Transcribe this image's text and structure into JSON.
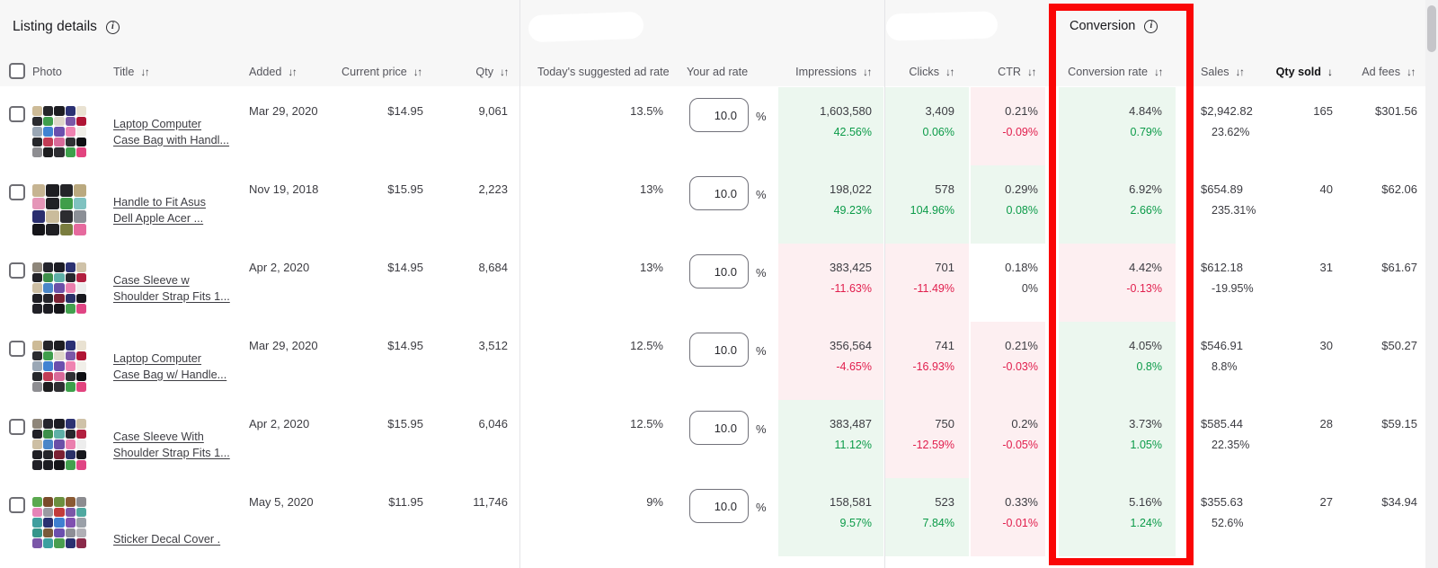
{
  "header": {
    "listing_details_label": "Listing details",
    "conversion_label": "Conversion"
  },
  "columns": {
    "photo": "Photo",
    "title": "Title",
    "added": "Added",
    "current_price": "Current price",
    "qty": "Qty",
    "suggested_rate": "Today's suggested ad rate",
    "your_ad_rate": "Your ad rate",
    "impressions": "Impressions",
    "clicks": "Clicks",
    "ctr": "CTR",
    "conversion_rate": "Conversion rate",
    "sales": "Sales",
    "qty_sold": "Qty sold",
    "ad_fees": "Ad fees",
    "sort_both": "↓↑",
    "sort_down": "↓"
  },
  "misc": {
    "percent": "%",
    "info": "i"
  },
  "colors": {
    "accent-red": "#fa0606",
    "green-text": "#0c9b49",
    "red-text": "#e11e4d",
    "cell-green": "#ecf7ef",
    "cell-pink": "#fdeff1"
  },
  "rows": [
    {
      "title": [
        "Laptop Computer",
        "Case Bag with Handl..."
      ],
      "added": "Mar 29, 2020",
      "price": "$14.95",
      "qty": "9,061",
      "suggested_rate": "13.5%",
      "ad_rate": "10.0",
      "impressions": {
        "value": "1,603,580",
        "delta": "42.56%",
        "trend": "up",
        "bg": "green"
      },
      "clicks": {
        "value": "3,409",
        "delta": "0.06%",
        "trend": "up",
        "bg": "green"
      },
      "ctr": {
        "value": "0.21%",
        "delta": "-0.09%",
        "trend": "down",
        "bg": "pink"
      },
      "conversion": {
        "value": "4.84%",
        "delta": "0.79%",
        "trend": "up",
        "bg": "green"
      },
      "sales": {
        "value": "$2,942.82",
        "delta": "23.62%"
      },
      "qty_sold": "165",
      "ad_fees": "$301.56",
      "photo": {
        "grid": 5,
        "colors": [
          "#cdbb97",
          "#26262a",
          "#1d1d21",
          "#2b3173",
          "#e9e2d2",
          "#2a2b2f",
          "#3f9e4c",
          "#dfd8ca",
          "#7b57a8",
          "#b01535",
          "#9aa7b5",
          "#4183d2",
          "#6b4fae",
          "#ef83b1",
          "#f1efe9",
          "#26272b",
          "#c23b55",
          "#d96a9a",
          "#303034",
          "#0f0f13",
          "#8e8e92",
          "#1d1d1f",
          "#2e2e32",
          "#3da04b",
          "#e2447f"
        ]
      }
    },
    {
      "title": [
        "Handle to Fit Asus",
        "Dell Apple Acer ..."
      ],
      "added": "Nov 19, 2018",
      "price": "$15.95",
      "qty": "2,223",
      "suggested_rate": "13%",
      "ad_rate": "10.0",
      "impressions": {
        "value": "198,022",
        "delta": "49.23%",
        "trend": "up",
        "bg": "green"
      },
      "clicks": {
        "value": "578",
        "delta": "104.96%",
        "trend": "up",
        "bg": "green"
      },
      "ctr": {
        "value": "0.29%",
        "delta": "0.08%",
        "trend": "up",
        "bg": "green"
      },
      "conversion": {
        "value": "6.92%",
        "delta": "2.66%",
        "trend": "up",
        "bg": "green"
      },
      "sales": {
        "value": "$654.89",
        "delta": "235.31%"
      },
      "qty_sold": "40",
      "ad_fees": "$62.06",
      "photo": {
        "grid": 4,
        "colors": [
          "#c6b492",
          "#1e1e22",
          "#242428",
          "#baa97f",
          "#e596b8",
          "#212125",
          "#3f9e49",
          "#7fc2c0",
          "#2a2e6e",
          "#cabc9c",
          "#2c2c30",
          "#8b8f96",
          "#151519",
          "#202024",
          "#7a7d3f",
          "#e66a9e"
        ]
      }
    },
    {
      "title": [
        "Case Sleeve w",
        "Shoulder Strap Fits 1..."
      ],
      "added": "Apr 2, 2020",
      "price": "$14.95",
      "qty": "8,684",
      "suggested_rate": "13%",
      "ad_rate": "10.0",
      "impressions": {
        "value": "383,425",
        "delta": "-11.63%",
        "trend": "down",
        "bg": "pink"
      },
      "clicks": {
        "value": "701",
        "delta": "-11.49%",
        "trend": "down",
        "bg": "pink"
      },
      "ctr": {
        "value": "0.18%",
        "delta": "0%",
        "trend": "flat",
        "bg": "white"
      },
      "conversion": {
        "value": "4.42%",
        "delta": "-0.13%",
        "trend": "down",
        "bg": "pink"
      },
      "sales": {
        "value": "$612.18",
        "delta": "-19.95%"
      },
      "qty_sold": "31",
      "ad_fees": "$61.67",
      "photo": {
        "grid": 5,
        "colors": [
          "#8e867a",
          "#24242c",
          "#1c1c24",
          "#2c3272",
          "#cfc2a8",
          "#212127",
          "#3d8f4a",
          "#5fb0a8",
          "#27272d",
          "#b22040",
          "#cdbfa4",
          "#4a86c8",
          "#6b50a8",
          "#ea7fae",
          "#ededed",
          "#1f1f25",
          "#24242a",
          "#7c2033",
          "#2a3168",
          "#17171d",
          "#212127",
          "#1c1c22",
          "#151519",
          "#42a04e",
          "#e04584"
        ]
      }
    },
    {
      "title": [
        "Laptop Computer",
        "Case Bag w/ Handle..."
      ],
      "added": "Mar 29, 2020",
      "price": "$14.95",
      "qty": "3,512",
      "suggested_rate": "12.5%",
      "ad_rate": "10.0",
      "impressions": {
        "value": "356,564",
        "delta": "-4.65%",
        "trend": "down",
        "bg": "pink"
      },
      "clicks": {
        "value": "741",
        "delta": "-16.93%",
        "trend": "down",
        "bg": "pink"
      },
      "ctr": {
        "value": "0.21%",
        "delta": "-0.03%",
        "trend": "down",
        "bg": "pink"
      },
      "conversion": {
        "value": "4.05%",
        "delta": "0.8%",
        "trend": "up",
        "bg": "green"
      },
      "sales": {
        "value": "$546.91",
        "delta": "8.8%"
      },
      "qty_sold": "30",
      "ad_fees": "$50.27",
      "photo": {
        "grid": 5,
        "colors": [
          "#cdbb97",
          "#26262a",
          "#1d1d21",
          "#2b3173",
          "#e9e2d2",
          "#2a2b2f",
          "#3f9e4c",
          "#dfd8ca",
          "#7b57a8",
          "#b01535",
          "#9aa7b5",
          "#4183d2",
          "#6b4fae",
          "#ef83b1",
          "#f1efe9",
          "#26272b",
          "#c23b55",
          "#d96a9a",
          "#303034",
          "#0f0f13",
          "#8e8e92",
          "#1d1d1f",
          "#2e2e32",
          "#3da04b",
          "#e2447f"
        ]
      }
    },
    {
      "title": [
        "Case Sleeve With",
        "Shoulder Strap Fits 1..."
      ],
      "added": "Apr 2, 2020",
      "price": "$15.95",
      "qty": "6,046",
      "suggested_rate": "12.5%",
      "ad_rate": "10.0",
      "impressions": {
        "value": "383,487",
        "delta": "11.12%",
        "trend": "up",
        "bg": "green"
      },
      "clicks": {
        "value": "750",
        "delta": "-12.59%",
        "trend": "down",
        "bg": "pink"
      },
      "ctr": {
        "value": "0.2%",
        "delta": "-0.05%",
        "trend": "down",
        "bg": "pink"
      },
      "conversion": {
        "value": "3.73%",
        "delta": "1.05%",
        "trend": "up",
        "bg": "green"
      },
      "sales": {
        "value": "$585.44",
        "delta": "22.35%"
      },
      "qty_sold": "28",
      "ad_fees": "$59.15",
      "photo": {
        "grid": 5,
        "colors": [
          "#8e867a",
          "#24242c",
          "#1c1c24",
          "#2c3272",
          "#cfc2a8",
          "#212127",
          "#3d8f4a",
          "#5fb0a8",
          "#27272d",
          "#b22040",
          "#cdbfa4",
          "#4a86c8",
          "#6b50a8",
          "#ea7fae",
          "#ededed",
          "#1f1f25",
          "#24242a",
          "#7c2033",
          "#2a3168",
          "#17171d",
          "#212127",
          "#1c1c22",
          "#151519",
          "#42a04e",
          "#e04584"
        ]
      }
    },
    {
      "title": [
        "Sticker Decal Cover ."
      ],
      "added": "May 5, 2020",
      "price": "$11.95",
      "qty": "11,746",
      "suggested_rate": "9%",
      "ad_rate": "10.0",
      "impressions": {
        "value": "158,581",
        "delta": "9.57%",
        "trend": "up",
        "bg": "green"
      },
      "clicks": {
        "value": "523",
        "delta": "7.84%",
        "trend": "up",
        "bg": "green"
      },
      "ctr": {
        "value": "0.33%",
        "delta": "-0.01%",
        "trend": "down",
        "bg": "pink"
      },
      "conversion": {
        "value": "5.16%",
        "delta": "1.24%",
        "trend": "up",
        "bg": "green"
      },
      "sales": {
        "value": "$355.63",
        "delta": "52.6%"
      },
      "qty_sold": "27",
      "ad_fees": "$34.94",
      "photo": {
        "grid": 5,
        "colors": [
          "#5aa84f",
          "#7a4a2a",
          "#6b8f3f",
          "#8a5a33",
          "#8c8c90",
          "#e584b8",
          "#9a9aa2",
          "#c23b3b",
          "#7b57a8",
          "#4fa8a0",
          "#3f9e9e",
          "#2a3070",
          "#3f7fd1",
          "#8050b0",
          "#9aa0a8",
          "#35958a",
          "#7a5a3a",
          "#6b4fae",
          "#8e8e96",
          "#b0b0b6",
          "#7b57a8",
          "#3da0a0",
          "#4a9e4f",
          "#2a3070",
          "#8a2a4a"
        ]
      }
    }
  ]
}
